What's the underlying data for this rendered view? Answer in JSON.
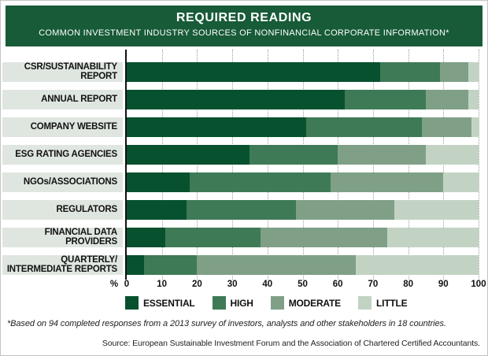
{
  "header": {
    "title": "REQUIRED READING",
    "subtitle": "COMMON INVESTMENT INDUSTRY SOURCES OF NONFINANCIAL CORPORATE INFORMATION*",
    "bg_color": "#175b38"
  },
  "chart_data": {
    "type": "bar",
    "stacked": true,
    "orientation": "horizontal",
    "title": "REQUIRED READING",
    "subtitle": "COMMON INVESTMENT INDUSTRY SOURCES OF NONFINANCIAL CORPORATE INFORMATION*",
    "unit": "%",
    "categories": [
      "CSR/SUSTAINABILITY REPORT",
      "ANNUAL REPORT",
      "COMPANY WEBSITE",
      "ESG RATING AGENCIES",
      "NGOs/ASSOCIATIONS",
      "REGULATORS",
      "FINANCIAL DATA PROVIDERS",
      "QUARTERLY/\nINTERMEDIATE REPORTS"
    ],
    "series": [
      {
        "name": "ESSENTIAL",
        "color": "#07512f",
        "values": [
          72,
          62,
          51,
          35,
          18,
          17,
          11,
          5
        ]
      },
      {
        "name": "HIGH",
        "color": "#3f7a56",
        "values": [
          17,
          23,
          33,
          25,
          40,
          31,
          27,
          15
        ]
      },
      {
        "name": "MODERATE",
        "color": "#7fa087",
        "values": [
          8,
          12,
          14,
          25,
          32,
          28,
          36,
          45
        ]
      },
      {
        "name": "LITTLE",
        "color": "#c2d3c4",
        "values": [
          3,
          3,
          2,
          15,
          10,
          24,
          26,
          35
        ]
      }
    ],
    "xlim": [
      0,
      100
    ],
    "xticks": [
      0,
      10,
      20,
      30,
      40,
      50,
      60,
      70,
      80,
      90,
      100
    ],
    "x_axis_prefix_label": "%",
    "grid": "dotted-vertical",
    "legend_position": "bottom-left",
    "row_label_bg": "#dfe6e0"
  },
  "footnote": "*Based on 94 completed responses from a 2013 survey of investors, analysts and other stakeholders in 18 countries.",
  "source": "Source: European Sustainable Investment Forum and the Association of Chartered Certified Accountants."
}
